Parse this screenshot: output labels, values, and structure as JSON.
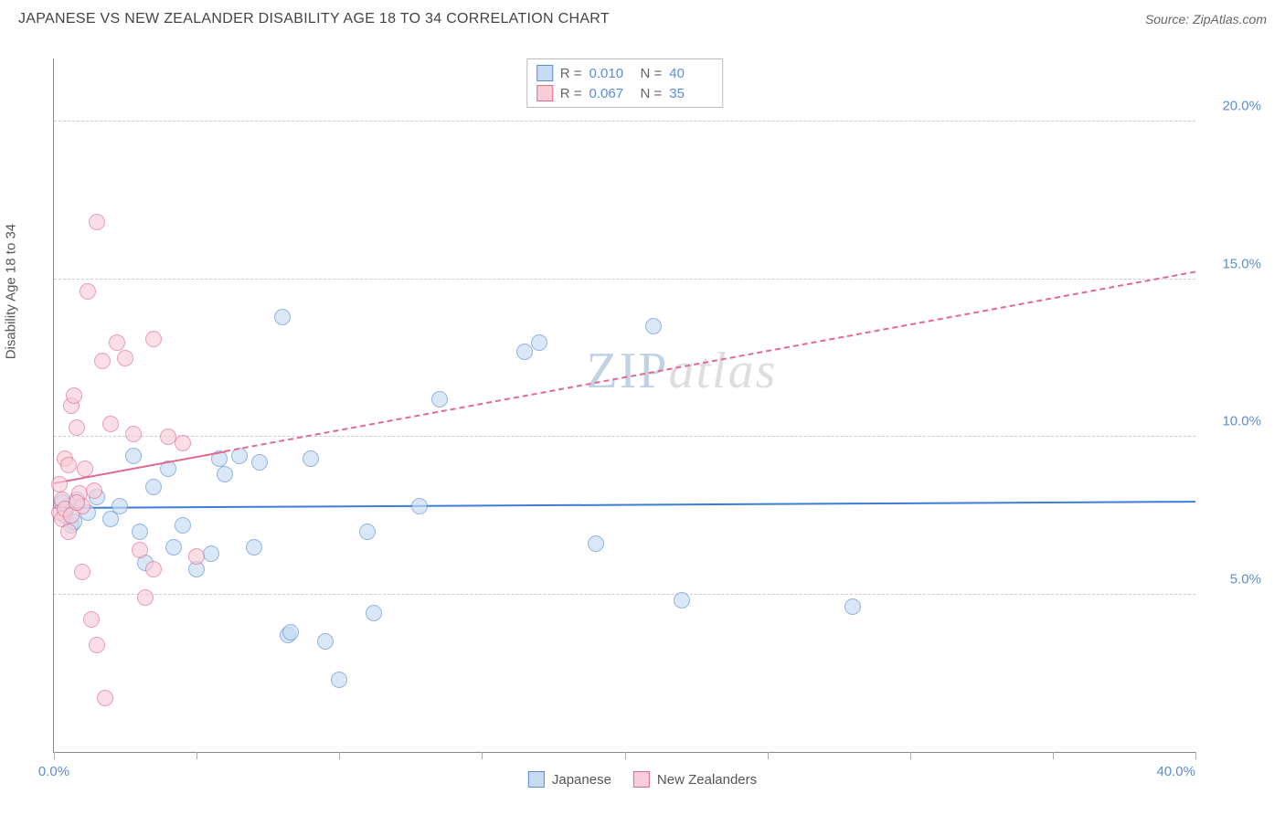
{
  "title": "JAPANESE VS NEW ZEALANDER DISABILITY AGE 18 TO 34 CORRELATION CHART",
  "source": "Source: ZipAtlas.com",
  "ylabel": "Disability Age 18 to 34",
  "watermark": {
    "zip": "ZIP",
    "atlas": "atlas"
  },
  "chart": {
    "type": "scatter",
    "xlim": [
      0,
      40
    ],
    "ylim": [
      0,
      22
    ],
    "x_ticks": [
      0,
      5,
      10,
      15,
      20,
      25,
      30,
      35,
      40
    ],
    "x_tick_labels_shown": {
      "0": "0.0%",
      "40": "40.0%"
    },
    "y_gridlines": [
      5,
      10,
      15,
      20
    ],
    "y_tick_labels": {
      "5": "5.0%",
      "10": "10.0%",
      "15": "15.0%",
      "20": "20.0%"
    },
    "background_color": "#ffffff",
    "grid_color": "#cccccc",
    "axis_color": "#888888",
    "tick_label_color": "#5b8dd6",
    "marker_radius": 9,
    "marker_stroke_width": 1.2,
    "series": [
      {
        "name": "Japanese",
        "fill": "#c5dbf2",
        "stroke": "#5b8dd6",
        "fill_opacity": 0.65,
        "R": "0.010",
        "N": "40",
        "trend": {
          "color": "#3b7dd8",
          "width": 2.5,
          "solid_range_x": [
            0,
            40
          ],
          "y_at_x0": 7.7,
          "y_at_x40": 7.9,
          "dash_after_x": null
        },
        "points": [
          [
            0.4,
            7.5
          ],
          [
            0.5,
            7.8
          ],
          [
            0.6,
            7.2
          ],
          [
            0.8,
            8.0
          ],
          [
            1.2,
            7.6
          ],
          [
            2.0,
            7.4
          ],
          [
            2.8,
            9.4
          ],
          [
            3.0,
            7.0
          ],
          [
            3.2,
            6.0
          ],
          [
            3.5,
            8.4
          ],
          [
            4.2,
            6.5
          ],
          [
            4.5,
            7.2
          ],
          [
            5.0,
            5.8
          ],
          [
            5.5,
            6.3
          ],
          [
            5.8,
            9.3
          ],
          [
            6.5,
            9.4
          ],
          [
            7.0,
            6.5
          ],
          [
            7.2,
            9.2
          ],
          [
            8.0,
            13.8
          ],
          [
            8.2,
            3.7
          ],
          [
            8.3,
            3.8
          ],
          [
            9.0,
            9.3
          ],
          [
            9.5,
            3.5
          ],
          [
            10.0,
            2.3
          ],
          [
            11.0,
            7.0
          ],
          [
            11.2,
            4.4
          ],
          [
            12.8,
            7.8
          ],
          [
            13.5,
            11.2
          ],
          [
            16.5,
            12.7
          ],
          [
            17.0,
            13.0
          ],
          [
            19.0,
            6.6
          ],
          [
            21.0,
            13.5
          ],
          [
            22.0,
            4.8
          ],
          [
            28.0,
            4.6
          ],
          [
            0.3,
            7.9
          ],
          [
            0.7,
            7.3
          ],
          [
            1.5,
            8.1
          ],
          [
            2.3,
            7.8
          ],
          [
            4.0,
            9.0
          ],
          [
            6.0,
            8.8
          ]
        ]
      },
      {
        "name": "New Zealanders",
        "fill": "#f6cdd9",
        "stroke": "#e26a8f",
        "fill_opacity": 0.65,
        "R": "0.067",
        "N": "35",
        "trend": {
          "color": "#e26a8f",
          "width": 2.2,
          "solid_range_x": [
            0,
            6
          ],
          "y_at_x0": 8.5,
          "y_at_x40": 15.2,
          "dash_after_x": 6
        },
        "points": [
          [
            0.2,
            7.6
          ],
          [
            0.3,
            7.4
          ],
          [
            0.3,
            8.0
          ],
          [
            0.4,
            7.7
          ],
          [
            0.4,
            9.3
          ],
          [
            0.5,
            9.1
          ],
          [
            0.6,
            11.0
          ],
          [
            0.7,
            11.3
          ],
          [
            0.8,
            10.3
          ],
          [
            0.9,
            8.2
          ],
          [
            1.0,
            7.8
          ],
          [
            1.0,
            5.7
          ],
          [
            1.2,
            14.6
          ],
          [
            1.3,
            4.2
          ],
          [
            1.5,
            16.8
          ],
          [
            1.5,
            3.4
          ],
          [
            1.7,
            12.4
          ],
          [
            1.8,
            1.7
          ],
          [
            2.0,
            10.4
          ],
          [
            2.2,
            13.0
          ],
          [
            2.5,
            12.5
          ],
          [
            2.8,
            10.1
          ],
          [
            3.0,
            6.4
          ],
          [
            3.2,
            4.9
          ],
          [
            3.5,
            13.1
          ],
          [
            3.5,
            5.8
          ],
          [
            4.0,
            10.0
          ],
          [
            4.5,
            9.8
          ],
          [
            5.0,
            6.2
          ],
          [
            0.2,
            8.5
          ],
          [
            0.5,
            7.0
          ],
          [
            0.6,
            7.5
          ],
          [
            0.8,
            7.9
          ],
          [
            1.1,
            9.0
          ],
          [
            1.4,
            8.3
          ]
        ]
      }
    ],
    "legend_top": {
      "border_color": "#bbbbbb",
      "label_color": "#666666",
      "value_color": "#5b8dd6"
    },
    "legend_bottom_labels": [
      "Japanese",
      "New Zealanders"
    ]
  }
}
